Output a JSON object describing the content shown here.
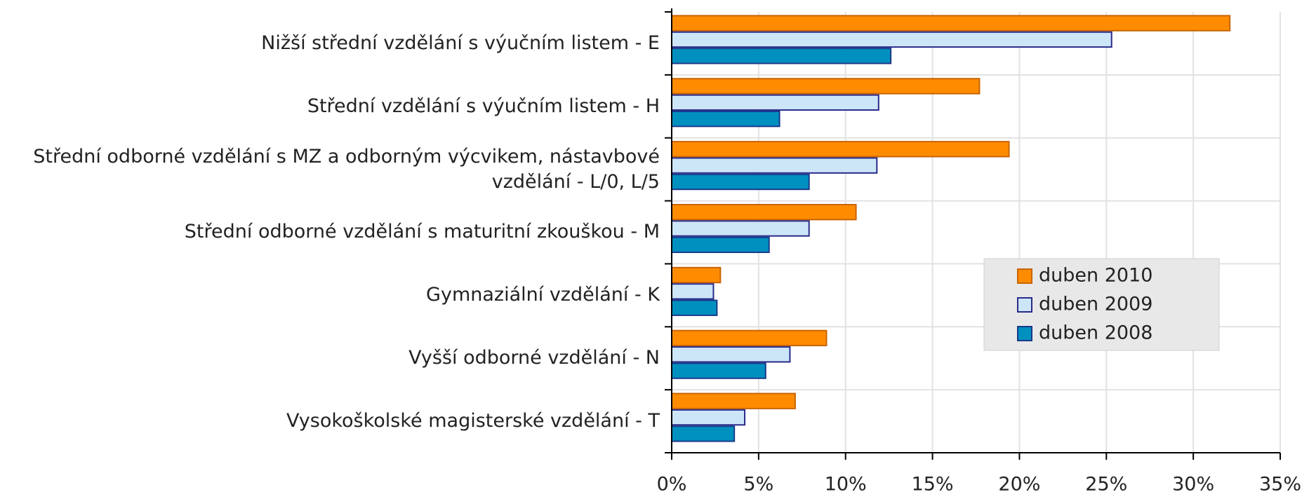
{
  "chart_data": {
    "type": "hbar",
    "categories": [
      "Nižší střední vzdělání s výučním listem - E",
      "Střední vzdělání s výučním listem - H",
      "Střední odborné vzdělání s MZ a odborným výcvikem, nástavbové vzdělání - L/0, L/5",
      "Střední odborné vzdělání s maturitní zkouškou - M",
      "Gymnaziální vzdělání - K",
      "Vyšší odborné vzdělání - N",
      "Vysokoškolské magisterské vzdělání - T"
    ],
    "series": [
      {
        "name": "duben 2010",
        "color": "#ff8c00",
        "stroke": "#c86400",
        "values": [
          32.1,
          17.7,
          19.4,
          10.6,
          2.8,
          8.9,
          7.1
        ]
      },
      {
        "name": "duben 2009",
        "color": "#cce6f8",
        "stroke": "#2a2a8a",
        "values": [
          25.3,
          11.9,
          11.8,
          7.9,
          2.4,
          6.8,
          4.2
        ]
      },
      {
        "name": "duben 2008",
        "color": "#0090c0",
        "stroke": "#1a3a8a",
        "values": [
          12.6,
          6.2,
          7.9,
          5.6,
          2.6,
          5.4,
          3.6
        ]
      }
    ],
    "xlim": [
      0,
      35
    ],
    "xticks": [
      {
        "value": 0,
        "label": "0%"
      },
      {
        "value": 5,
        "label": "5%"
      },
      {
        "value": 10,
        "label": "10%"
      },
      {
        "value": 15,
        "label": "15%"
      },
      {
        "value": 20,
        "label": "20%"
      },
      {
        "value": 25,
        "label": "25%"
      },
      {
        "value": 30,
        "label": "30%"
      },
      {
        "value": 35,
        "label": "35%"
      }
    ],
    "grid": true,
    "legend": "right"
  }
}
